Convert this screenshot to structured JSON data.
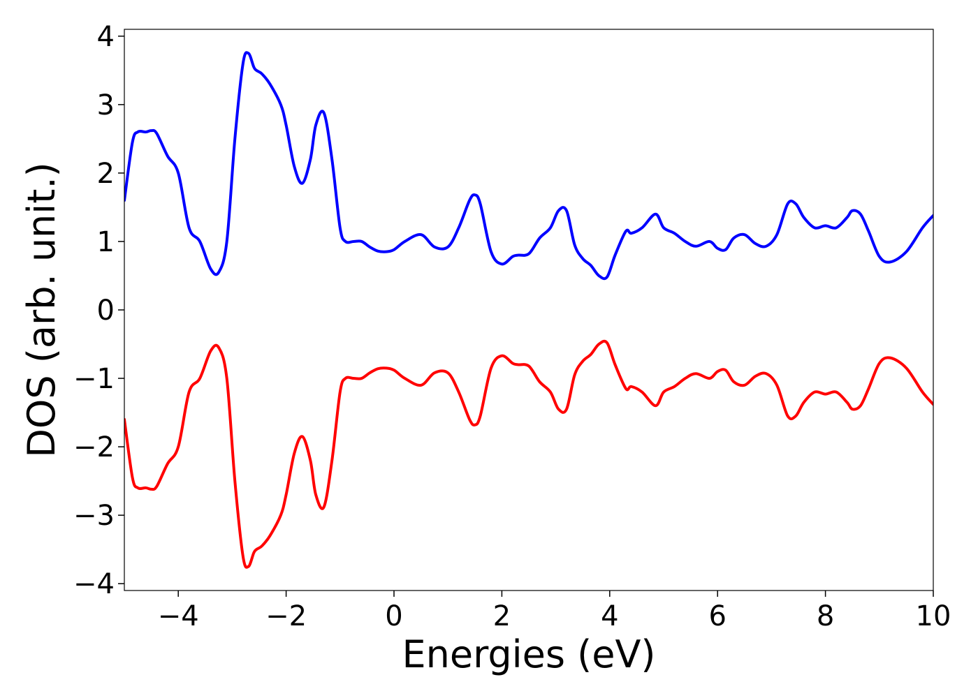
{
  "chart_data": {
    "type": "line",
    "title": "",
    "xlabel": "Energies (eV)",
    "ylabel": "DOS (arb. unit.)",
    "xlim": [
      -5,
      10
    ],
    "ylim": [
      -4.1,
      4.1
    ],
    "x_ticks": [
      -4,
      -2,
      0,
      2,
      4,
      6,
      8,
      10
    ],
    "x_tick_labels": [
      "−4",
      "−2",
      "0",
      "2",
      "4",
      "6",
      "8",
      "10"
    ],
    "y_ticks": [
      -4,
      -3,
      -2,
      -1,
      0,
      1,
      2,
      3,
      4
    ],
    "y_tick_labels": [
      "−4",
      "−3",
      "−2",
      "−1",
      "0",
      "1",
      "2",
      "3",
      "4"
    ],
    "grid": false,
    "legend": "none",
    "series": [
      {
        "color": "#0000ff",
        "x": [
          -5.0,
          -4.85,
          -4.75,
          -4.6,
          -4.5,
          -4.4,
          -4.2,
          -4.0,
          -3.8,
          -3.6,
          -3.4,
          -3.25,
          -3.1,
          -2.95,
          -2.8,
          -2.7,
          -2.6,
          -2.55,
          -2.45,
          -2.3,
          -2.1,
          -2.0,
          -1.85,
          -1.7,
          -1.55,
          -1.45,
          -1.3,
          -1.15,
          -1.0,
          -0.9,
          -0.75,
          -0.6,
          -0.45,
          -0.3,
          -0.15,
          0.0,
          0.2,
          0.5,
          0.75,
          1.0,
          1.2,
          1.4,
          1.5,
          1.6,
          1.8,
          2.0,
          2.2,
          2.3,
          2.5,
          2.7,
          2.9,
          3.05,
          3.2,
          3.35,
          3.5,
          3.65,
          3.8,
          3.95,
          4.1,
          4.3,
          4.4,
          4.6,
          4.85,
          5.0,
          5.2,
          5.4,
          5.6,
          5.85,
          6.0,
          6.15,
          6.3,
          6.5,
          6.7,
          6.9,
          7.1,
          7.3,
          7.45,
          7.6,
          7.8,
          8.0,
          8.2,
          8.4,
          8.5,
          8.65,
          8.8,
          9.0,
          9.2,
          9.5,
          9.8,
          10.0
        ],
        "y": [
          1.6,
          2.45,
          2.6,
          2.6,
          2.62,
          2.58,
          2.25,
          2.0,
          1.2,
          1.0,
          0.6,
          0.55,
          1.0,
          2.5,
          3.6,
          3.75,
          3.55,
          3.5,
          3.45,
          3.3,
          3.0,
          2.7,
          2.1,
          1.85,
          2.2,
          2.7,
          2.88,
          2.2,
          1.2,
          1.0,
          1.0,
          1.0,
          0.92,
          0.86,
          0.85,
          0.88,
          1.0,
          1.1,
          0.92,
          0.92,
          1.2,
          1.6,
          1.68,
          1.55,
          0.85,
          0.67,
          0.78,
          0.8,
          0.82,
          1.05,
          1.2,
          1.45,
          1.45,
          0.95,
          0.75,
          0.65,
          0.5,
          0.48,
          0.8,
          1.15,
          1.12,
          1.2,
          1.4,
          1.2,
          1.12,
          1.0,
          0.93,
          1.0,
          0.9,
          0.88,
          1.05,
          1.1,
          0.97,
          0.93,
          1.1,
          1.55,
          1.55,
          1.35,
          1.2,
          1.23,
          1.2,
          1.35,
          1.45,
          1.4,
          1.15,
          0.78,
          0.7,
          0.85,
          1.2,
          1.38
        ]
      },
      {
        "color": "#ff0000",
        "x": [
          -5.0,
          -4.85,
          -4.75,
          -4.6,
          -4.5,
          -4.4,
          -4.2,
          -4.0,
          -3.8,
          -3.6,
          -3.4,
          -3.25,
          -3.1,
          -2.95,
          -2.8,
          -2.7,
          -2.6,
          -2.55,
          -2.45,
          -2.3,
          -2.1,
          -2.0,
          -1.85,
          -1.7,
          -1.55,
          -1.45,
          -1.3,
          -1.15,
          -1.0,
          -0.9,
          -0.75,
          -0.6,
          -0.45,
          -0.3,
          -0.15,
          0.0,
          0.2,
          0.5,
          0.75,
          1.0,
          1.2,
          1.4,
          1.5,
          1.6,
          1.8,
          2.0,
          2.2,
          2.3,
          2.5,
          2.7,
          2.9,
          3.05,
          3.2,
          3.35,
          3.5,
          3.65,
          3.8,
          3.95,
          4.1,
          4.3,
          4.4,
          4.6,
          4.85,
          5.0,
          5.2,
          5.4,
          5.6,
          5.85,
          6.0,
          6.15,
          6.3,
          6.5,
          6.7,
          6.9,
          7.1,
          7.3,
          7.45,
          7.6,
          7.8,
          8.0,
          8.2,
          8.4,
          8.5,
          8.65,
          8.8,
          9.0,
          9.2,
          9.5,
          9.8,
          10.0
        ],
        "y": [
          -1.6,
          -2.45,
          -2.6,
          -2.6,
          -2.62,
          -2.58,
          -2.25,
          -2.0,
          -1.2,
          -1.0,
          -0.6,
          -0.55,
          -1.0,
          -2.5,
          -3.6,
          -3.75,
          -3.55,
          -3.5,
          -3.45,
          -3.3,
          -3.0,
          -2.7,
          -2.1,
          -1.85,
          -2.2,
          -2.7,
          -2.88,
          -2.2,
          -1.2,
          -1.0,
          -1.0,
          -1.0,
          -0.92,
          -0.86,
          -0.85,
          -0.88,
          -1.0,
          -1.1,
          -0.92,
          -0.92,
          -1.2,
          -1.6,
          -1.68,
          -1.55,
          -0.85,
          -0.67,
          -0.78,
          -0.8,
          -0.82,
          -1.05,
          -1.2,
          -1.45,
          -1.45,
          -0.95,
          -0.75,
          -0.65,
          -0.5,
          -0.48,
          -0.8,
          -1.15,
          -1.12,
          -1.2,
          -1.4,
          -1.2,
          -1.12,
          -1.0,
          -0.93,
          -1.0,
          -0.9,
          -0.88,
          -1.05,
          -1.1,
          -0.97,
          -0.93,
          -1.1,
          -1.55,
          -1.55,
          -1.35,
          -1.2,
          -1.23,
          -1.2,
          -1.35,
          -1.45,
          -1.4,
          -1.15,
          -0.78,
          -0.7,
          -0.85,
          -1.2,
          -1.38
        ]
      }
    ]
  }
}
